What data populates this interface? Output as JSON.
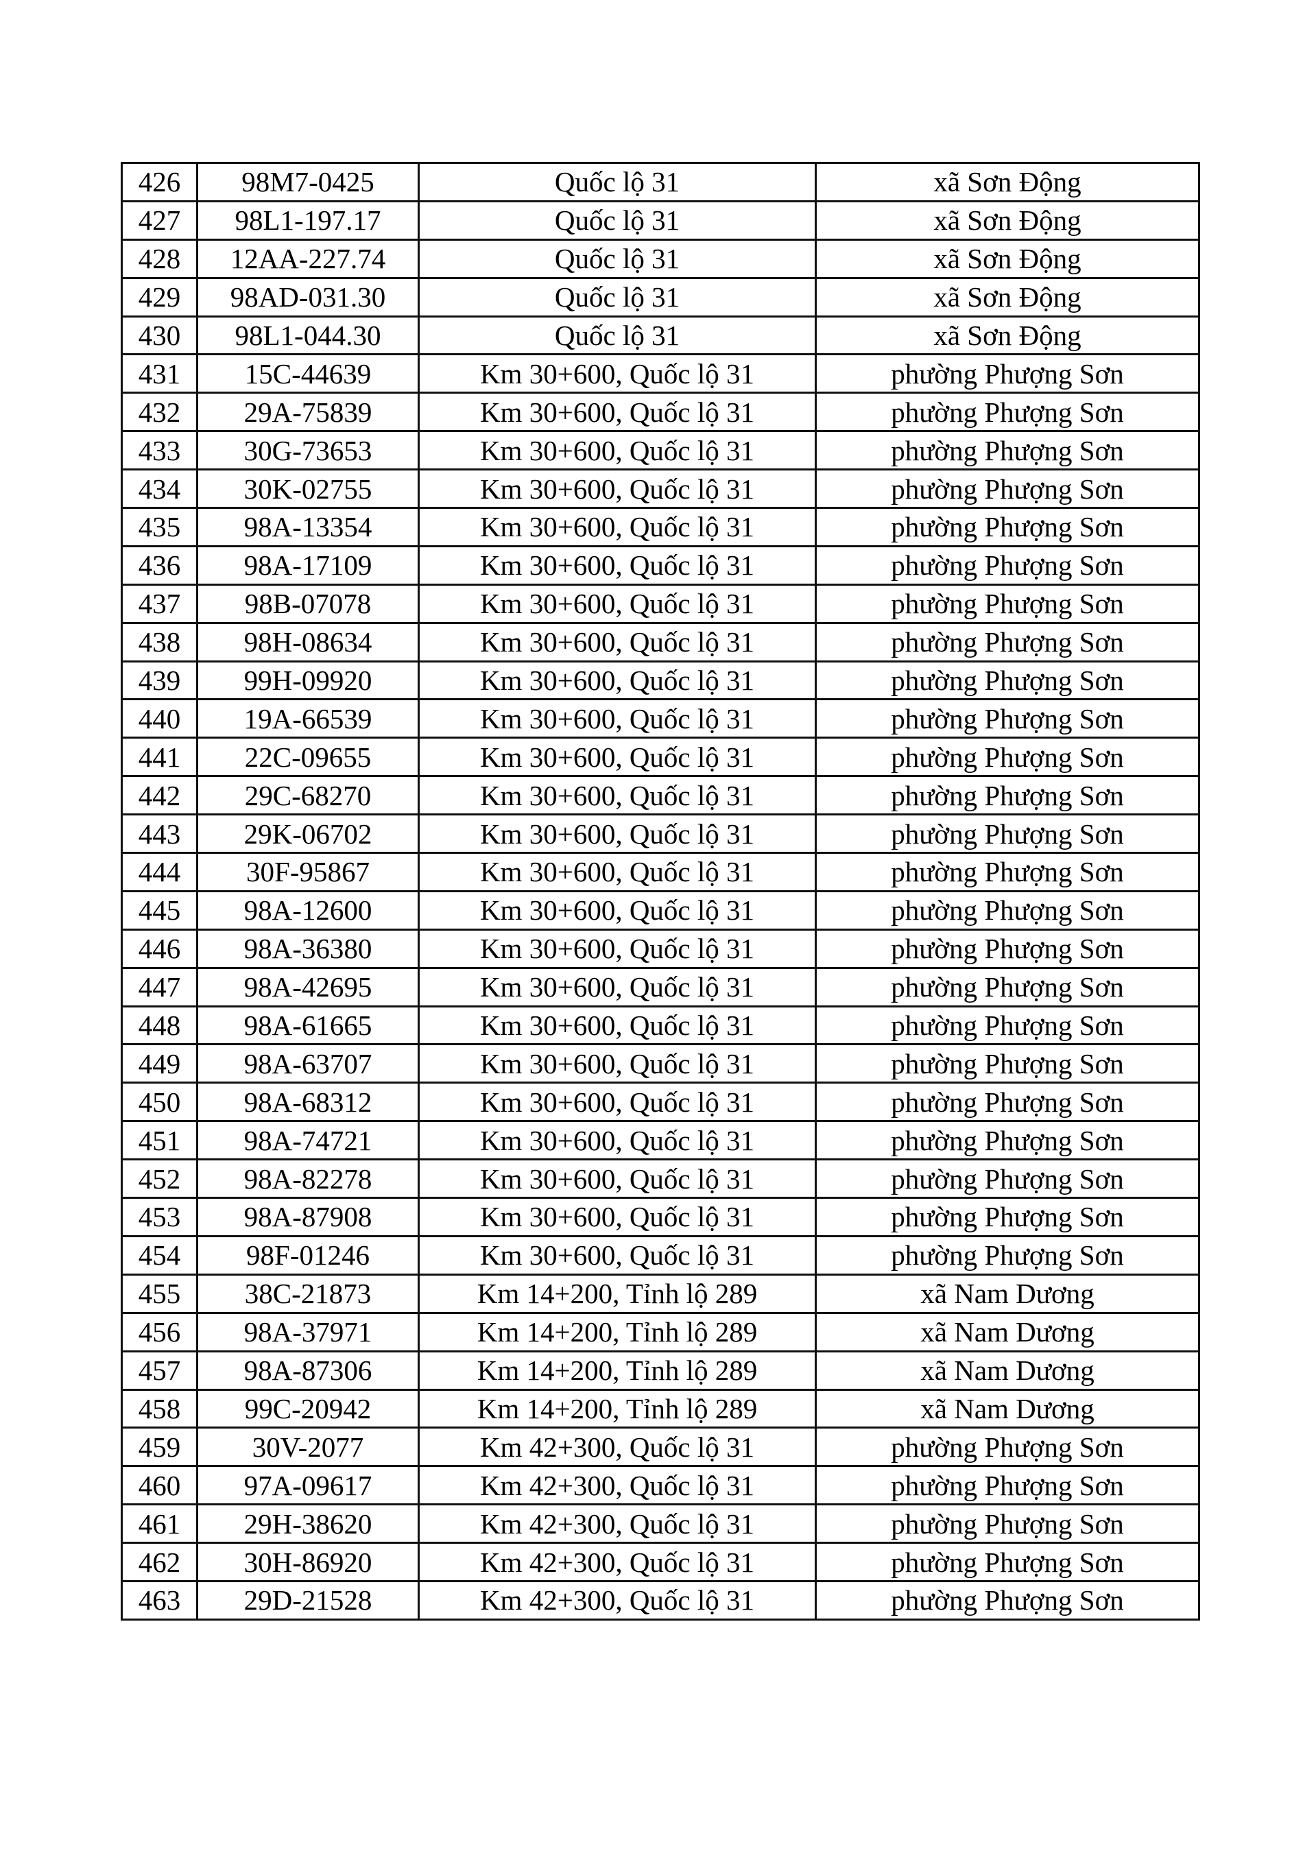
{
  "table": {
    "rows": [
      [
        "426",
        "98M7-0425",
        "Quốc lộ 31",
        "xã Sơn Động"
      ],
      [
        "427",
        "98L1-197.17",
        "Quốc lộ 31",
        "xã Sơn Động"
      ],
      [
        "428",
        "12AA-227.74",
        "Quốc lộ 31",
        "xã Sơn Động"
      ],
      [
        "429",
        "98AD-031.30",
        "Quốc lộ 31",
        "xã Sơn Động"
      ],
      [
        "430",
        "98L1-044.30",
        "Quốc lộ 31",
        "xã Sơn Động"
      ],
      [
        "431",
        "15C-44639",
        "Km 30+600, Quốc lộ 31",
        "phường Phượng Sơn"
      ],
      [
        "432",
        "29A-75839",
        "Km 30+600, Quốc lộ 31",
        "phường Phượng Sơn"
      ],
      [
        "433",
        "30G-73653",
        "Km 30+600, Quốc lộ 31",
        "phường Phượng Sơn"
      ],
      [
        "434",
        "30K-02755",
        "Km 30+600, Quốc lộ 31",
        "phường Phượng Sơn"
      ],
      [
        "435",
        "98A-13354",
        "Km 30+600, Quốc lộ 31",
        "phường Phượng Sơn"
      ],
      [
        "436",
        "98A-17109",
        "Km 30+600, Quốc lộ 31",
        "phường Phượng Sơn"
      ],
      [
        "437",
        "98B-07078",
        "Km 30+600, Quốc lộ 31",
        "phường Phượng Sơn"
      ],
      [
        "438",
        "98H-08634",
        "Km 30+600, Quốc lộ 31",
        "phường Phượng Sơn"
      ],
      [
        "439",
        "99H-09920",
        "Km 30+600, Quốc lộ 31",
        "phường Phượng Sơn"
      ],
      [
        "440",
        "19A-66539",
        "Km 30+600, Quốc lộ 31",
        "phường Phượng Sơn"
      ],
      [
        "441",
        "22C-09655",
        "Km 30+600, Quốc lộ 31",
        "phường Phượng Sơn"
      ],
      [
        "442",
        "29C-68270",
        "Km 30+600, Quốc lộ 31",
        "phường Phượng Sơn"
      ],
      [
        "443",
        "29K-06702",
        "Km 30+600, Quốc lộ 31",
        "phường Phượng Sơn"
      ],
      [
        "444",
        "30F-95867",
        "Km 30+600, Quốc lộ 31",
        "phường Phượng Sơn"
      ],
      [
        "445",
        "98A-12600",
        "Km 30+600, Quốc lộ 31",
        "phường Phượng Sơn"
      ],
      [
        "446",
        "98A-36380",
        "Km 30+600, Quốc lộ 31",
        "phường Phượng Sơn"
      ],
      [
        "447",
        "98A-42695",
        "Km 30+600, Quốc lộ 31",
        "phường Phượng Sơn"
      ],
      [
        "448",
        "98A-61665",
        "Km 30+600, Quốc lộ 31",
        "phường Phượng Sơn"
      ],
      [
        "449",
        "98A-63707",
        "Km 30+600, Quốc lộ 31",
        "phường Phượng Sơn"
      ],
      [
        "450",
        "98A-68312",
        "Km 30+600, Quốc lộ 31",
        "phường Phượng Sơn"
      ],
      [
        "451",
        "98A-74721",
        "Km 30+600, Quốc lộ 31",
        "phường Phượng Sơn"
      ],
      [
        "452",
        "98A-82278",
        "Km 30+600, Quốc lộ 31",
        "phường Phượng Sơn"
      ],
      [
        "453",
        "98A-87908",
        "Km 30+600, Quốc lộ 31",
        "phường Phượng Sơn"
      ],
      [
        "454",
        "98F-01246",
        "Km 30+600, Quốc lộ 31",
        "phường Phượng Sơn"
      ],
      [
        "455",
        "38C-21873",
        "Km 14+200, Tỉnh lộ 289",
        "xã Nam Dương"
      ],
      [
        "456",
        "98A-37971",
        "Km 14+200, Tỉnh lộ 289",
        "xã Nam Dương"
      ],
      [
        "457",
        "98A-87306",
        "Km 14+200, Tỉnh lộ 289",
        "xã Nam Dương"
      ],
      [
        "458",
        "99C-20942",
        "Km 14+200, Tỉnh lộ 289",
        "xã Nam Dương"
      ],
      [
        "459",
        "30V-2077",
        "Km 42+300, Quốc lộ 31",
        "phường Phượng Sơn"
      ],
      [
        "460",
        "97A-09617",
        "Km 42+300, Quốc lộ 31",
        "phường Phượng Sơn"
      ],
      [
        "461",
        "29H-38620",
        "Km 42+300, Quốc lộ 31",
        "phường Phượng Sơn"
      ],
      [
        "462",
        "30H-86920",
        "Km 42+300, Quốc lộ 31",
        "phường Phượng Sơn"
      ],
      [
        "463",
        "29D-21528",
        "Km 42+300, Quốc lộ 31",
        "phường Phượng Sơn"
      ]
    ]
  }
}
